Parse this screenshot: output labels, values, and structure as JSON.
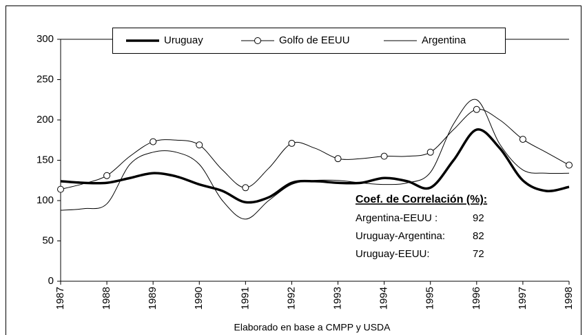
{
  "chart_data": {
    "type": "line",
    "x": [
      1987,
      1987.5,
      1988,
      1988.5,
      1989,
      1989.5,
      1990,
      1990.5,
      1991,
      1991.5,
      1992,
      1992.5,
      1993,
      1993.5,
      1994,
      1994.5,
      1995,
      1995.5,
      1996,
      1996.5,
      1997,
      1997.5,
      1998
    ],
    "series": [
      {
        "name": "Uruguay",
        "color": "#000000",
        "width": 3.5,
        "marker": "none",
        "values": [
          124,
          122,
          122,
          128,
          134,
          130,
          120,
          112,
          98,
          104,
          122,
          124,
          122,
          122,
          128,
          124,
          116,
          150,
          188,
          165,
          125,
          112,
          117
        ]
      },
      {
        "name": "Golfo de EEUU",
        "color": "#000000",
        "width": 1,
        "marker": "circle",
        "values": [
          114,
          121,
          131,
          155,
          173,
          175,
          169,
          138,
          116,
          140,
          171,
          165,
          152,
          152,
          155,
          155,
          160,
          188,
          213,
          200,
          176,
          160,
          144
        ]
      },
      {
        "name": "Argentina",
        "color": "#000000",
        "width": 1,
        "marker": "none",
        "values": [
          88,
          90,
          96,
          145,
          160,
          160,
          145,
          100,
          77,
          100,
          120,
          125,
          125,
          122,
          120,
          122,
          135,
          195,
          225,
          170,
          138,
          134,
          134
        ]
      }
    ],
    "xlim": [
      1987,
      1998
    ],
    "xticks": [
      1987,
      1988,
      1989,
      1990,
      1991,
      1992,
      1993,
      1994,
      1995,
      1996,
      1997,
      1998
    ],
    "ylim": [
      0,
      300
    ],
    "yticks": [
      0,
      50,
      100,
      150,
      200,
      250,
      300
    ],
    "grid": false,
    "legend": "top",
    "correlation": {
      "title": "Coef. de Correlación (%):",
      "rows": [
        [
          "Argentina-EEUU :",
          92
        ],
        [
          "Uruguay-Argentina:",
          82
        ],
        [
          "Uruguay-EEUU:",
          72
        ]
      ]
    },
    "footnote": "Elaborado en base a CMPP y USDA"
  }
}
